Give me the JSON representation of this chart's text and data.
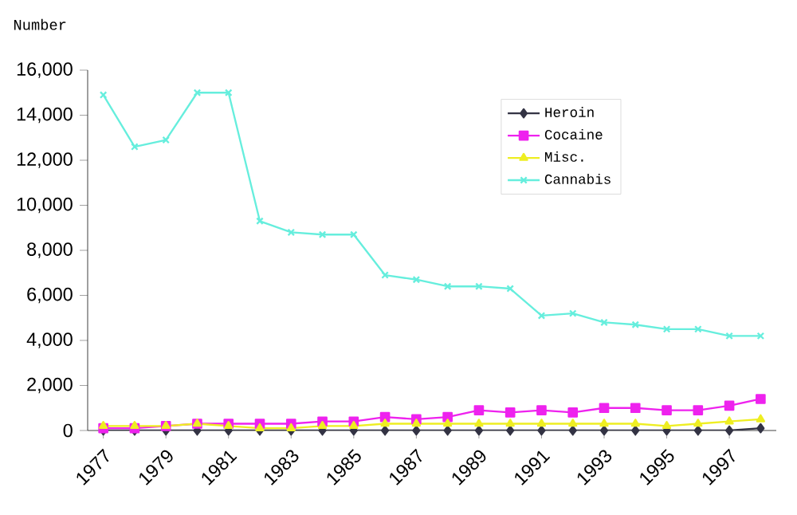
{
  "chart_data": {
    "type": "line",
    "ylabel": "Number",
    "x": [
      1977,
      1978,
      1979,
      1980,
      1981,
      1982,
      1983,
      1984,
      1985,
      1986,
      1987,
      1988,
      1989,
      1990,
      1991,
      1992,
      1993,
      1994,
      1995,
      1996,
      1997,
      1998
    ],
    "series": [
      {
        "name": "Heroin",
        "color": "#333344",
        "marker": "diamond",
        "values": [
          0,
          0,
          0,
          0,
          0,
          0,
          0,
          0,
          0,
          0,
          0,
          0,
          0,
          0,
          0,
          0,
          0,
          0,
          0,
          0,
          0,
          100
        ]
      },
      {
        "name": "Cocaine",
        "color": "#ee22ee",
        "marker": "square",
        "values": [
          100,
          100,
          200,
          300,
          300,
          300,
          300,
          400,
          400,
          600,
          500,
          600,
          900,
          800,
          900,
          800,
          1000,
          1000,
          900,
          900,
          1100,
          1400
        ]
      },
      {
        "name": "Misc.",
        "color": "#eeee22",
        "marker": "triangle",
        "values": [
          200,
          200,
          200,
          300,
          200,
          100,
          100,
          200,
          200,
          300,
          300,
          300,
          300,
          300,
          300,
          300,
          300,
          300,
          200,
          300,
          400,
          500
        ]
      },
      {
        "name": "Cannabis",
        "color": "#66eedd",
        "marker": "cross",
        "values": [
          14900,
          12600,
          12900,
          15000,
          15000,
          9300,
          8800,
          8700,
          8700,
          6900,
          6700,
          6400,
          6400,
          6300,
          5100,
          5200,
          4800,
          4700,
          4500,
          4500,
          4200,
          4200
        ]
      }
    ],
    "xlim": [
      1976.5,
      1998.5
    ],
    "xticks": [
      1977,
      1979,
      1981,
      1983,
      1985,
      1987,
      1989,
      1991,
      1993,
      1995,
      1997
    ],
    "ylim": [
      0,
      16000
    ],
    "yticks": [
      0,
      {
        "value": 2000,
        "label": "2,000"
      },
      {
        "value": 4000,
        "label": "4,000"
      },
      {
        "value": 6000,
        "label": "6,000"
      },
      {
        "value": 8000,
        "label": "8,000"
      },
      {
        "value": 10000,
        "label": "10,000"
      },
      {
        "value": 12000,
        "label": "12,000"
      },
      {
        "value": 14000,
        "label": "14,000"
      },
      {
        "value": 16000,
        "label": "16,000"
      }
    ],
    "grid": false,
    "legend": "top right",
    "line_style": "solid"
  }
}
